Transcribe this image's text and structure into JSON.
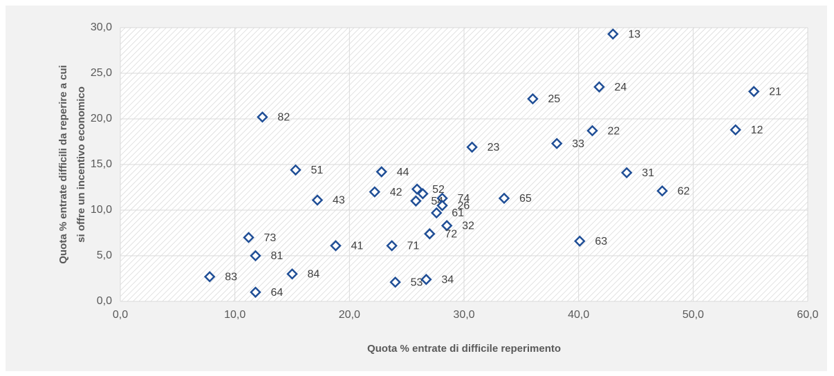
{
  "chart_data": {
    "type": "scatter",
    "xlabel": "Quota % entrate di difficile reperimento",
    "ylabel": [
      "Quota % entrate difficili da reperire a cui",
      "si offre un incentivo economico"
    ],
    "x": [
      43.0,
      41.8,
      55.3,
      36.0,
      12.4,
      41.2,
      53.7,
      38.1,
      30.7,
      15.3,
      22.8,
      44.2,
      47.3,
      22.2,
      25.9,
      26.4,
      28.1,
      25.8,
      28.1,
      17.2,
      33.5,
      27.6,
      28.5,
      27.0,
      11.2,
      18.8,
      23.7,
      40.1,
      11.8,
      7.8,
      15.0,
      24.0,
      26.7,
      11.8
    ],
    "values": [
      29.3,
      23.5,
      23.0,
      22.2,
      20.2,
      18.7,
      18.8,
      17.3,
      16.9,
      14.4,
      14.2,
      14.1,
      12.1,
      12.0,
      12.3,
      11.8,
      11.3,
      11.0,
      10.5,
      11.1,
      11.3,
      9.7,
      8.3,
      7.4,
      7.0,
      6.1,
      6.1,
      6.6,
      5.0,
      2.7,
      3.0,
      2.1,
      2.4,
      1.0
    ],
    "labels": [
      "13",
      "24",
      "21",
      "25",
      "82",
      "22",
      "12",
      "33",
      "23",
      "51",
      "44",
      "31",
      "62",
      "42",
      "52",
      null,
      "74",
      "54",
      "26",
      "43",
      "65",
      "61",
      "32",
      "72",
      "73",
      "41",
      "71",
      "63",
      "81",
      "83",
      "84",
      "53",
      "34",
      "64"
    ],
    "color": "#1f4e96",
    "xlim": [
      0,
      60
    ],
    "ylim": [
      0,
      30
    ],
    "xticks": [
      {
        "value": 0,
        "label": "0,0"
      },
      {
        "value": 10,
        "label": "10,0"
      },
      {
        "value": 20,
        "label": "20,0"
      },
      {
        "value": 30,
        "label": "30,0"
      },
      {
        "value": 40,
        "label": "40,0"
      },
      {
        "value": 50,
        "label": "50,0"
      },
      {
        "value": 60,
        "label": "60,0"
      }
    ],
    "yticks": [
      {
        "value": 0,
        "label": "0,0"
      },
      {
        "value": 5,
        "label": "5,0"
      },
      {
        "value": 10,
        "label": "10,0"
      },
      {
        "value": 15,
        "label": "15,0"
      },
      {
        "value": 20,
        "label": "20,0"
      },
      {
        "value": 25,
        "label": "25,0"
      },
      {
        "value": 30,
        "label": "30,0"
      }
    ],
    "grid": true
  }
}
